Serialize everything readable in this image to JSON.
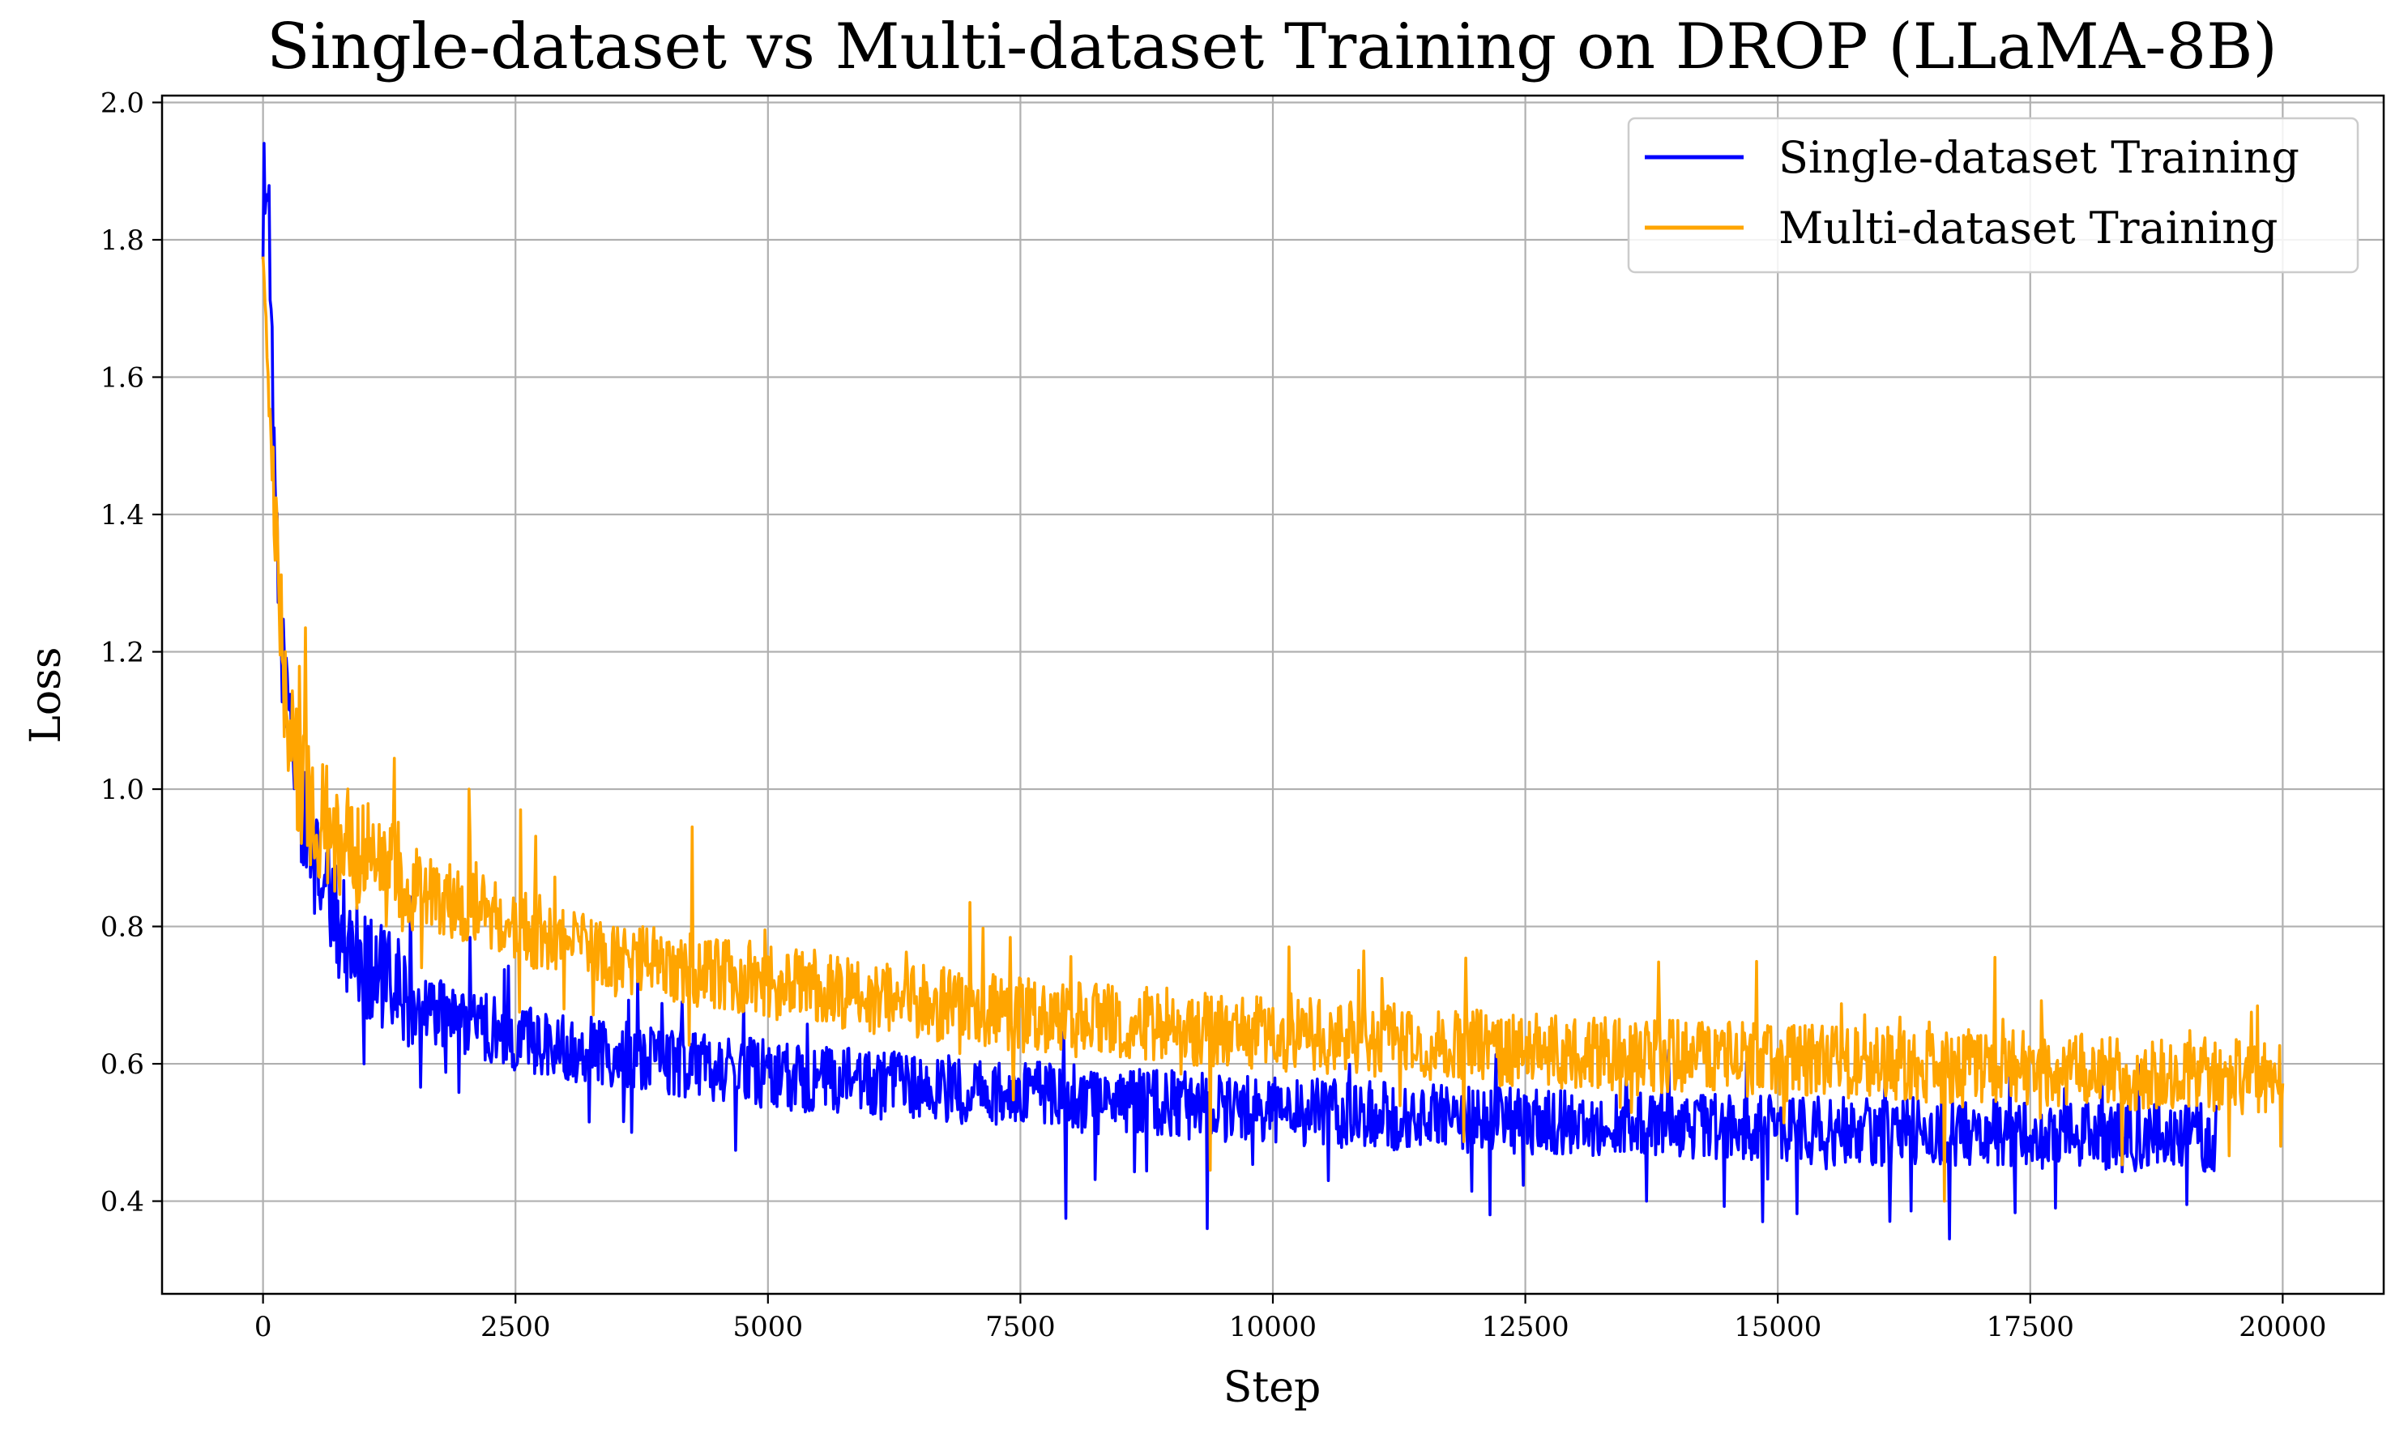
{
  "chart_data": {
    "type": "line",
    "title": "Single-dataset vs Multi-dataset Training on DROP (LLaMA-8B)",
    "xlabel": "Step",
    "ylabel": "Loss",
    "xlim": [
      -1000,
      21000
    ],
    "ylim": [
      0.265,
      2.01
    ],
    "x_ticks": [
      0,
      2500,
      5000,
      7500,
      10000,
      12500,
      15000,
      17500,
      20000
    ],
    "x_tick_labels": [
      "0",
      "2500",
      "5000",
      "7500",
      "10000",
      "12500",
      "15000",
      "17500",
      "20000"
    ],
    "y_ticks": [
      0.4,
      0.6,
      0.8,
      1.0,
      1.2,
      1.4,
      1.6,
      1.8,
      2.0
    ],
    "y_tick_labels": [
      "0.4",
      "0.6",
      "0.8",
      "1.0",
      "1.2",
      "1.4",
      "1.6",
      "1.8",
      "2.0"
    ],
    "grid": true,
    "legend_position": "top-right",
    "series": [
      {
        "name": "Single-dataset Training",
        "color": "#0000ff",
        "x": [
          0,
          25,
          50,
          80,
          100,
          150,
          200,
          250,
          300,
          350,
          400,
          500,
          600,
          700,
          800,
          1000,
          1200,
          1500,
          2000,
          2500,
          3000,
          3500,
          4000,
          4500,
          5000,
          6000,
          7000,
          8000,
          9000,
          10000,
          11000,
          12000,
          13000,
          14000,
          15000,
          16000,
          17000,
          18000,
          19000,
          19350
        ],
        "values": [
          1.84,
          1.93,
          1.85,
          1.7,
          1.5,
          1.3,
          1.18,
          1.12,
          1.07,
          1.0,
          0.95,
          0.9,
          0.86,
          0.82,
          0.79,
          0.75,
          0.72,
          0.69,
          0.66,
          0.64,
          0.625,
          0.615,
          0.605,
          0.595,
          0.585,
          0.57,
          0.56,
          0.55,
          0.54,
          0.53,
          0.525,
          0.52,
          0.515,
          0.51,
          0.505,
          0.5,
          0.5,
          0.495,
          0.495,
          0.49
        ],
        "noise_amplitude": 0.05,
        "spikes": [
          {
            "x": 1000,
            "y": 0.6
          },
          {
            "x": 7950,
            "y": 0.375
          },
          {
            "x": 9350,
            "y": 0.36
          },
          {
            "x": 12150,
            "y": 0.38
          },
          {
            "x": 13700,
            "y": 0.4
          },
          {
            "x": 14850,
            "y": 0.37
          },
          {
            "x": 16700,
            "y": 0.345
          },
          {
            "x": 17750,
            "y": 0.39
          },
          {
            "x": 19050,
            "y": 0.395
          }
        ]
      },
      {
        "name": "Multi-dataset Training",
        "color": "#ffa500",
        "x": [
          0,
          25,
          50,
          100,
          150,
          200,
          250,
          300,
          350,
          400,
          500,
          600,
          800,
          1000,
          1200,
          1500,
          2000,
          2500,
          3000,
          3500,
          4000,
          5000,
          6000,
          7000,
          8000,
          9000,
          10000,
          11000,
          12000,
          13000,
          14000,
          15000,
          16000,
          17000,
          18000,
          19000,
          20000
        ],
        "values": [
          1.83,
          1.75,
          1.6,
          1.45,
          1.3,
          1.18,
          1.1,
          1.05,
          1.02,
          1.0,
          0.97,
          0.95,
          0.92,
          0.9,
          0.88,
          0.86,
          0.83,
          0.8,
          0.78,
          0.76,
          0.745,
          0.72,
          0.7,
          0.68,
          0.665,
          0.655,
          0.645,
          0.635,
          0.625,
          0.615,
          0.61,
          0.605,
          0.6,
          0.595,
          0.59,
          0.585,
          0.58
        ],
        "noise_amplitude": 0.055,
        "spikes": [
          {
            "x": 420,
            "y": 1.235
          },
          {
            "x": 1300,
            "y": 1.045
          },
          {
            "x": 2040,
            "y": 1.0
          },
          {
            "x": 2550,
            "y": 0.97
          },
          {
            "x": 4250,
            "y": 0.945
          },
          {
            "x": 7000,
            "y": 0.835
          },
          {
            "x": 9380,
            "y": 0.445
          },
          {
            "x": 16650,
            "y": 0.4
          },
          {
            "x": 17150,
            "y": 0.755
          },
          {
            "x": 19980,
            "y": 0.48
          }
        ]
      }
    ]
  }
}
